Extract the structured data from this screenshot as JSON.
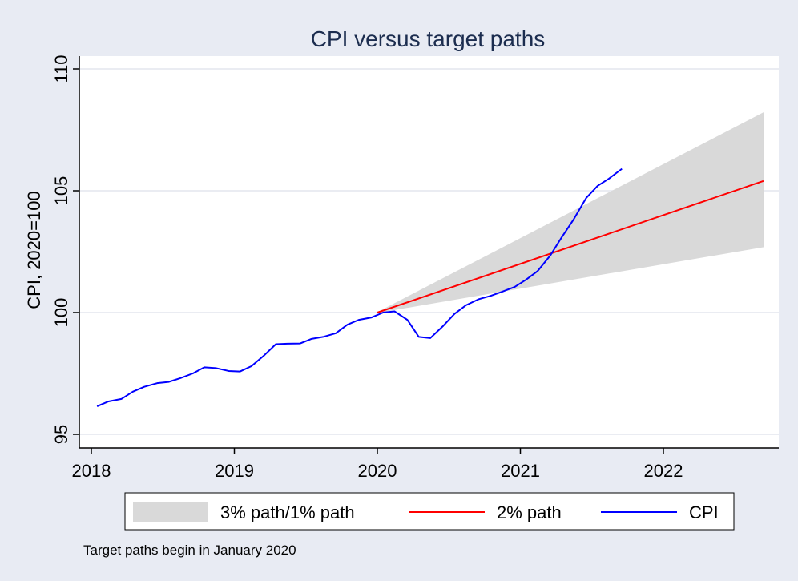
{
  "chart_data": {
    "type": "line",
    "title": "CPI versus target paths",
    "xlabel": "",
    "ylabel": "CPI, 2020=100",
    "xlim": [
      2018,
      2022.75
    ],
    "ylim": [
      95,
      110.5
    ],
    "xticks": [
      2018,
      2019,
      2020,
      2021,
      2022
    ],
    "yticks": [
      95,
      100,
      105,
      110
    ],
    "grid": true,
    "band": {
      "name": "3% path/1% path",
      "x": [
        2020.0,
        2022.7
      ],
      "upper": [
        100.0,
        108.2
      ],
      "lower": [
        100.0,
        102.7
      ],
      "color": "#d9d9d9"
    },
    "series": [
      {
        "name": "2% path",
        "color": "#ff0000",
        "x": [
          2020.0,
          2022.7
        ],
        "y": [
          100.0,
          105.4
        ]
      },
      {
        "name": "CPI",
        "color": "#0000ff",
        "x": [
          2018.04,
          2018.12,
          2018.21,
          2018.29,
          2018.37,
          2018.46,
          2018.54,
          2018.62,
          2018.71,
          2018.79,
          2018.87,
          2018.96,
          2019.04,
          2019.12,
          2019.21,
          2019.29,
          2019.37,
          2019.46,
          2019.54,
          2019.62,
          2019.71,
          2019.79,
          2019.87,
          2019.96,
          2020.04,
          2020.12,
          2020.21,
          2020.29,
          2020.37,
          2020.46,
          2020.54,
          2020.62,
          2020.71,
          2020.79,
          2020.87,
          2020.96,
          2021.04,
          2021.12,
          2021.21,
          2021.29,
          2021.37,
          2021.46,
          2021.54,
          2021.62,
          2021.71
        ],
        "y": [
          96.15,
          96.35,
          96.45,
          96.75,
          96.95,
          97.1,
          97.15,
          97.3,
          97.5,
          97.75,
          97.72,
          97.6,
          97.58,
          97.8,
          98.25,
          98.7,
          98.72,
          98.73,
          98.92,
          99.0,
          99.15,
          99.5,
          99.7,
          99.8,
          100.0,
          100.05,
          99.7,
          99.0,
          98.95,
          99.45,
          99.95,
          100.3,
          100.55,
          100.68,
          100.85,
          101.05,
          101.35,
          101.7,
          102.35,
          103.1,
          103.8,
          104.7,
          105.2,
          105.5,
          105.9
        ]
      }
    ],
    "legend": {
      "position": "bottom",
      "entries": [
        "3% path/1% path",
        "2% path",
        "CPI"
      ]
    },
    "note": "Target paths begin in January 2020"
  }
}
